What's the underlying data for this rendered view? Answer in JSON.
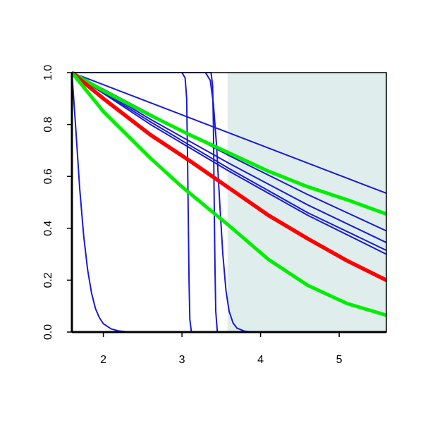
{
  "chart_data": {
    "type": "line",
    "title": "",
    "xlabel": "",
    "ylabel": "",
    "xlim": [
      1.6,
      5.6
    ],
    "ylim": [
      0,
      1
    ],
    "xticks": [
      2,
      3,
      4,
      5
    ],
    "yticks": [
      0,
      0.2,
      0.4,
      0.6,
      0.8,
      1
    ],
    "xtick_labels": [
      "2",
      "3",
      "4",
      "5"
    ],
    "ytick_labels": [
      "0.0",
      "0.2",
      "0.4",
      "0.6",
      "0.8",
      "1.0"
    ],
    "grid": false,
    "shaded_region": {
      "x_from": 3.58,
      "x_to": 5.6,
      "color": "#e0eded"
    },
    "colors": {
      "blue": "#1a1ad6",
      "red": "#ff0000",
      "green": "#00ee00"
    },
    "series": [
      {
        "color": "blue",
        "width": 2,
        "x": [
          1.6,
          1.65,
          1.7,
          1.75,
          1.8,
          1.85,
          1.9,
          1.95,
          2.0,
          2.1,
          2.2,
          2.3,
          2.5,
          5.6
        ],
        "y": [
          1.0,
          0.78,
          0.55,
          0.37,
          0.24,
          0.15,
          0.09,
          0.055,
          0.032,
          0.012,
          0.004,
          0.001,
          0.0,
          0.0
        ]
      },
      {
        "color": "blue",
        "width": 2,
        "x": [
          1.6,
          3.0,
          3.04,
          3.06,
          3.07,
          3.08,
          3.09,
          3.1,
          3.12,
          5.6
        ],
        "y": [
          1.0,
          1.0,
          0.98,
          0.9,
          0.7,
          0.45,
          0.2,
          0.05,
          0.0,
          0.0
        ]
      },
      {
        "color": "blue",
        "width": 2,
        "x": [
          1.6,
          3.37,
          3.39,
          3.4,
          3.41,
          3.42,
          3.43,
          3.45,
          5.6
        ],
        "y": [
          1.0,
          1.0,
          0.95,
          0.8,
          0.5,
          0.25,
          0.08,
          0.0,
          0.0
        ]
      },
      {
        "color": "blue",
        "width": 2,
        "x": [
          1.6,
          3.3,
          3.36,
          3.4,
          3.44,
          3.48,
          3.52,
          3.56,
          3.6,
          3.65,
          3.7,
          3.8,
          3.9,
          5.6
        ],
        "y": [
          1.0,
          1.0,
          0.97,
          0.88,
          0.72,
          0.5,
          0.3,
          0.16,
          0.08,
          0.035,
          0.015,
          0.003,
          0.0,
          0.0
        ]
      },
      {
        "color": "blue",
        "width": 2,
        "x": [
          1.6,
          5.6
        ],
        "y": [
          1.0,
          0.535
        ]
      },
      {
        "color": "blue",
        "width": 2,
        "x": [
          1.6,
          2.6,
          3.6,
          4.6,
          5.6
        ],
        "y": [
          1.0,
          0.84,
          0.68,
          0.53,
          0.39
        ]
      },
      {
        "color": "blue",
        "width": 2,
        "x": [
          1.6,
          2.6,
          3.6,
          4.6,
          5.6
        ],
        "y": [
          1.0,
          0.82,
          0.65,
          0.49,
          0.345
        ]
      },
      {
        "color": "blue",
        "width": 2,
        "x": [
          1.6,
          2.6,
          3.6,
          4.6,
          5.6
        ],
        "y": [
          1.0,
          0.81,
          0.63,
          0.46,
          0.315
        ]
      },
      {
        "color": "blue",
        "width": 2,
        "x": [
          1.6,
          2.6,
          3.6,
          4.6,
          5.6
        ],
        "y": [
          1.0,
          0.8,
          0.62,
          0.45,
          0.3
        ]
      },
      {
        "color": "green",
        "width": 5,
        "x": [
          1.6,
          2.0,
          2.6,
          3.1,
          3.6,
          4.1,
          4.6,
          5.1,
          5.6
        ],
        "y": [
          1.0,
          0.93,
          0.835,
          0.76,
          0.69,
          0.62,
          0.56,
          0.51,
          0.455
        ]
      },
      {
        "color": "red",
        "width": 5.5,
        "x": [
          1.6,
          2.0,
          2.6,
          3.1,
          3.6,
          4.1,
          4.6,
          5.1,
          5.6
        ],
        "y": [
          1.0,
          0.9,
          0.76,
          0.66,
          0.555,
          0.45,
          0.36,
          0.275,
          0.2
        ]
      },
      {
        "color": "green",
        "width": 5,
        "x": [
          1.6,
          2.0,
          2.6,
          3.0,
          3.6,
          4.1,
          4.6,
          5.1,
          5.6
        ],
        "y": [
          1.0,
          0.85,
          0.67,
          0.56,
          0.41,
          0.28,
          0.18,
          0.11,
          0.065
        ]
      }
    ]
  }
}
